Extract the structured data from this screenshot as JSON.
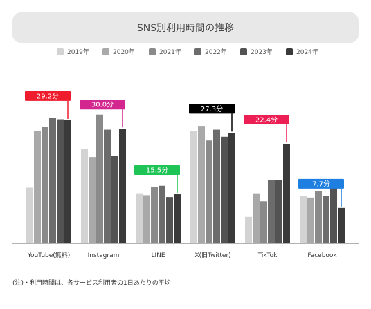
{
  "page": {
    "title": "SNS別利用時間の推移",
    "note": "(注)・利用時間は、各サービス利用者の1日あたりの平均"
  },
  "chart_data": {
    "type": "bar",
    "title": "SNS別利用時間の推移",
    "categories": [
      "YouTube(無料)",
      "Instagram",
      "LINE",
      "X(旧Twitter)",
      "TikTok",
      "Facebook"
    ],
    "series": [
      {
        "name": "2019年",
        "color": "#d3d3d3",
        "values": [
          11.8,
          20.0,
          10.6,
          23.8,
          5.6,
          10.0
        ]
      },
      {
        "name": "2020年",
        "color": "#a9a9a9",
        "values": [
          23.8,
          18.3,
          10.2,
          24.9,
          10.6,
          9.7
        ]
      },
      {
        "name": "2021年",
        "color": "#8a8a8a",
        "values": [
          24.7,
          27.3,
          12.0,
          21.8,
          8.9,
          11.1
        ]
      },
      {
        "name": "2022年",
        "color": "#6c6c6c",
        "values": [
          26.6,
          24.1,
          12.2,
          24.1,
          13.4,
          10.1
        ]
      },
      {
        "name": "2023年",
        "color": "#535353",
        "values": [
          26.3,
          18.6,
          9.8,
          22.6,
          13.4,
          12.3
        ]
      },
      {
        "name": "2024年",
        "color": "#3a3a3a",
        "values": [
          26.1,
          24.3,
          10.4,
          23.4,
          21.1,
          7.5
        ]
      }
    ],
    "callouts": [
      {
        "text": "29.2分",
        "color": "#ee1c2c"
      },
      {
        "text": "30.0分",
        "color": "#d3278f"
      },
      {
        "text": "15.5分",
        "color": "#1fc456"
      },
      {
        "text": "27.3分",
        "color": "#000000"
      },
      {
        "text": "22.4分",
        "color": "#ec1f55"
      },
      {
        "text": "7.7分",
        "color": "#1e7fe0"
      }
    ],
    "ylim": [
      0,
      34
    ],
    "grid": false,
    "legend": "top"
  }
}
